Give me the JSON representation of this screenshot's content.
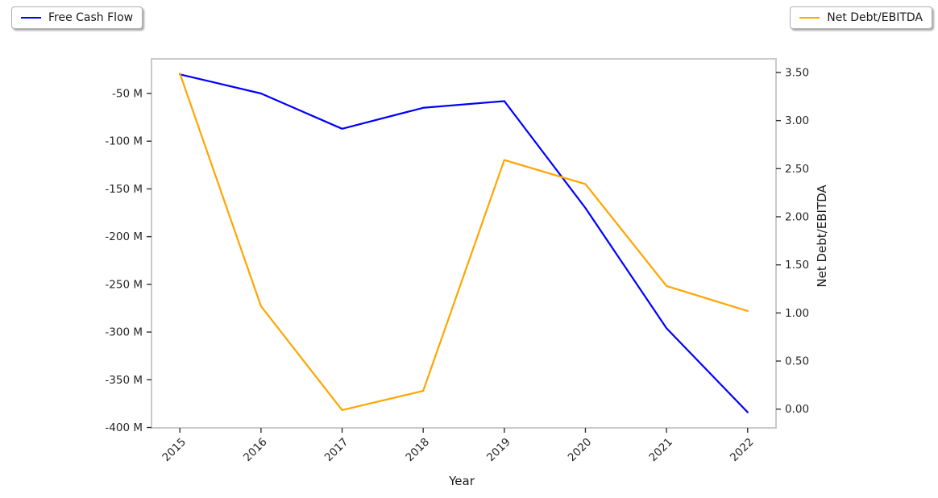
{
  "chart_data": {
    "type": "line",
    "title": "",
    "xlabel": "Year",
    "x_tick_labels": [
      "2015",
      "2016",
      "2017",
      "2018",
      "2019",
      "2020",
      "2021",
      "2022"
    ],
    "series": [
      {
        "name": "Free Cash Flow",
        "axis": "left",
        "color": "#0000ff",
        "unit": "M",
        "values": [
          -30,
          -50,
          -87,
          -65,
          -58,
          -170,
          -296,
          -384
        ]
      },
      {
        "name": "Net Debt/EBITDA",
        "axis": "right",
        "color": "#ffa500",
        "unit": "",
        "values": [
          3.49,
          1.07,
          -0.01,
          0.19,
          2.59,
          2.34,
          1.28,
          1.02
        ]
      }
    ],
    "left_axis": {
      "tick_values": [
        -50,
        -100,
        -150,
        -200,
        -250,
        -300,
        -350,
        -400
      ],
      "tick_labels": [
        "-50 M",
        "-100 M",
        "-150 M",
        "-200 M",
        "-250 M",
        "-300 M",
        "-350 M",
        "-400 M"
      ],
      "range": [
        -400.4,
        -13.7
      ]
    },
    "right_axis": {
      "label": "Net Debt/EBITDA",
      "tick_values": [
        3.5,
        3.0,
        2.5,
        2.0,
        1.5,
        1.0,
        0.5,
        0.0
      ],
      "tick_labels": [
        "3.50",
        "3.00",
        "2.50",
        "2.00",
        "1.50",
        "1.00",
        "0.50",
        "0.00"
      ],
      "range": [
        -0.195,
        3.642
      ]
    },
    "legend": {
      "left_label": "Free Cash Flow",
      "right_label": "Net Debt/EBITDA"
    },
    "grid": false,
    "plot_border_color": "#c9c9c9",
    "tick_color": "#333333",
    "tick_label_color": "#262626",
    "background_color": "#ffffff",
    "legend_position": "outside top-left and top-right"
  }
}
